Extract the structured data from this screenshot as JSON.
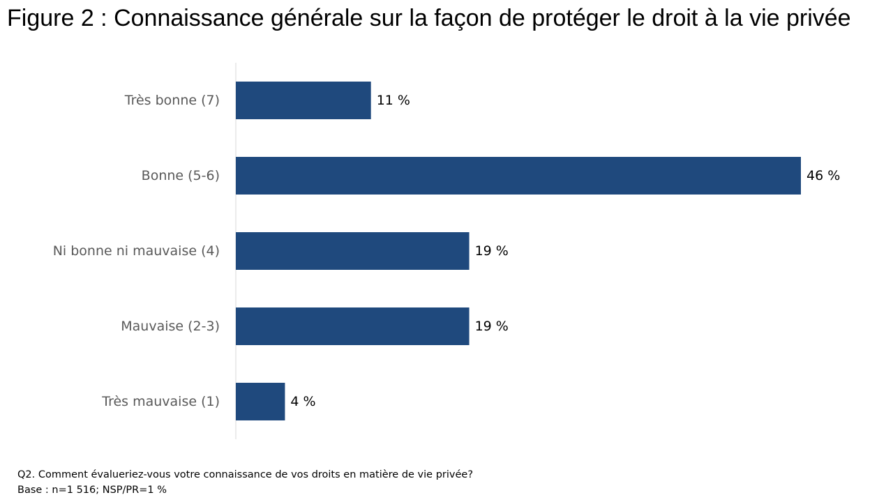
{
  "title": "Figure 2 : Connaissance générale sur la façon de protéger le droit à la vie privée",
  "colors": {
    "bar": "#1f497d",
    "axis": "#d9d9d9",
    "category_text": "#595959",
    "value_text": "#000000"
  },
  "chart_data": {
    "type": "bar",
    "orientation": "horizontal",
    "categories": [
      "Très bonne (7)",
      "Bonne (5-6)",
      "Ni bonne ni mauvaise (4)",
      "Mauvaise (2-3)",
      "Très mauvaise (1)"
    ],
    "values": [
      11,
      46,
      19,
      19,
      4
    ],
    "value_labels": [
      "11 %",
      "46 %",
      "19 %",
      "19 %",
      "4 %"
    ],
    "unit": "%",
    "xlim": [
      0,
      46
    ],
    "grid": false,
    "legend": "none"
  },
  "footnote": {
    "question": "Q2. Comment évalueriez-vous votre connaissance de vos droits en matière de vie privée?",
    "base": "Base : n=1 516; NSP/PR=1 %"
  }
}
